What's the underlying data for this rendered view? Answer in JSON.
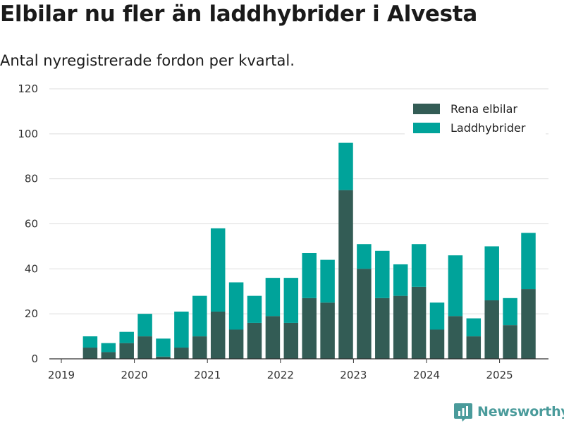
{
  "header": {
    "title": "Elbilar nu fler än laddhybrider i Alvesta",
    "subtitle": "Antal nyregistrerade fordon per kvartal."
  },
  "brand": {
    "name": "Newsworthy",
    "icon": "newsworthy-chart-icon",
    "color": "#4a9b9b"
  },
  "chart_data": {
    "type": "bar",
    "stacked": true,
    "categories": [
      "2019 Q2",
      "2019 Q3",
      "2019 Q4",
      "2020 Q1",
      "2020 Q2",
      "2020 Q3",
      "2020 Q4",
      "2021 Q1",
      "2021 Q2",
      "2021 Q3",
      "2021 Q4",
      "2022 Q1",
      "2022 Q2",
      "2022 Q3",
      "2022 Q4",
      "2023 Q1",
      "2023 Q2",
      "2023 Q3",
      "2023 Q4",
      "2024 Q1",
      "2024 Q2",
      "2024 Q3",
      "2024 Q4",
      "2025 Q1",
      "2025 Q2"
    ],
    "series": [
      {
        "name": "Rena elbilar",
        "color": "#335c55",
        "values": [
          5,
          3,
          7,
          10,
          1,
          5,
          10,
          21,
          13,
          16,
          19,
          16,
          27,
          25,
          75,
          40,
          27,
          28,
          32,
          13,
          19,
          10,
          26,
          15,
          31
        ]
      },
      {
        "name": "Laddhybrider",
        "color": "#00a39a",
        "values": [
          5,
          4,
          5,
          10,
          8,
          16,
          18,
          37,
          21,
          12,
          17,
          20,
          20,
          19,
          21,
          11,
          21,
          14,
          19,
          12,
          27,
          8,
          24,
          12,
          25
        ]
      }
    ],
    "x_tick_labels": [
      "2019",
      "2020",
      "2021",
      "2022",
      "2023",
      "2024",
      "2025"
    ],
    "y_ticks": [
      0,
      20,
      40,
      60,
      80,
      100,
      120
    ],
    "ylim": [
      0,
      120
    ],
    "grid": true,
    "legend_position": "top-right"
  }
}
